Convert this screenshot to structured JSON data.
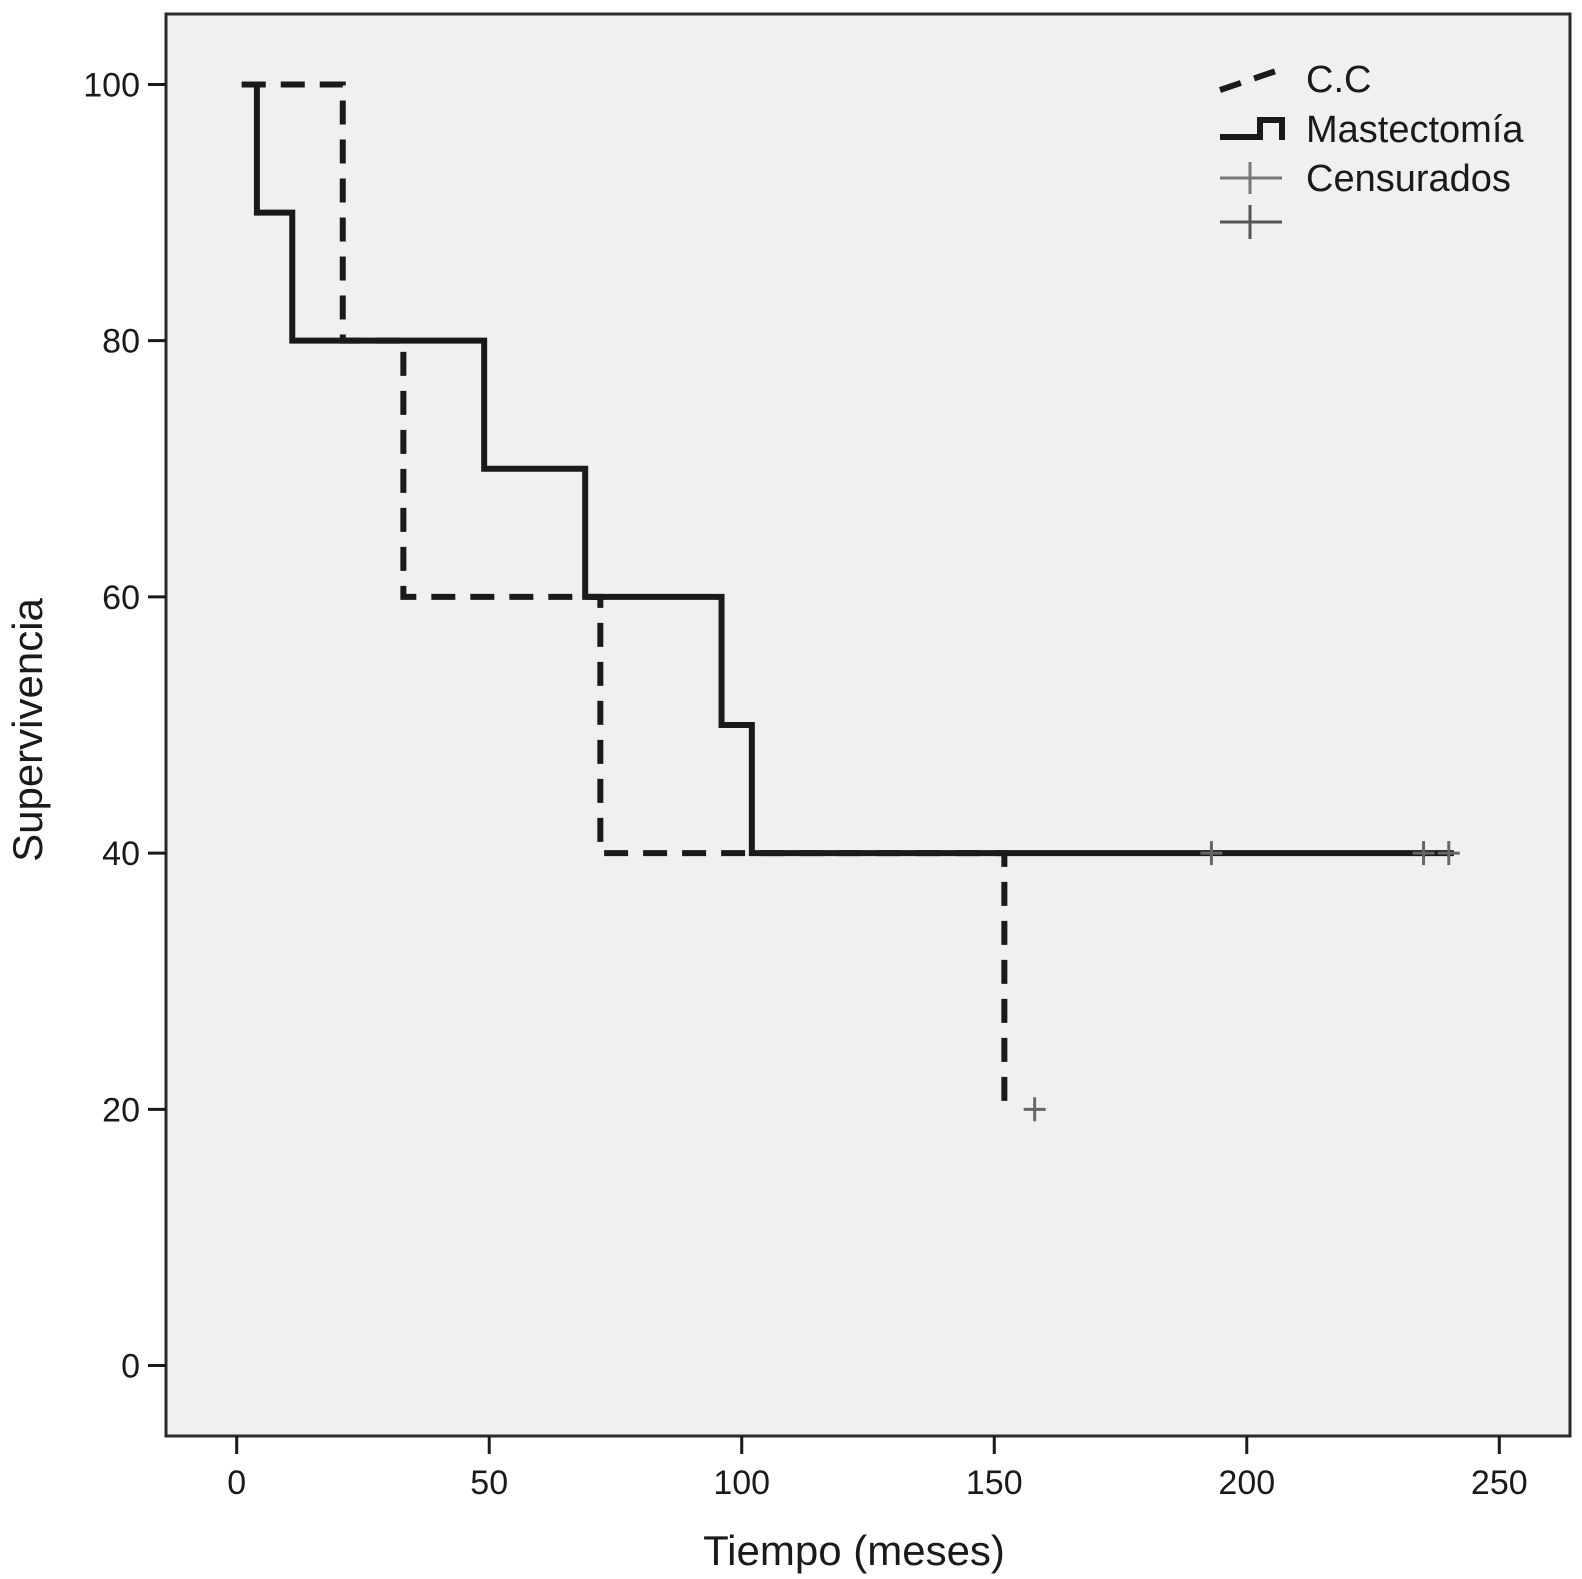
{
  "chart_data": {
    "type": "line",
    "subtype": "kaplan-meier step",
    "xlabel": "Tiempo (meses)",
    "ylabel": "Supervivencia",
    "xlim": [
      -14,
      264
    ],
    "ylim": [
      -5.5,
      105.5
    ],
    "xticks": [
      0,
      50,
      100,
      150,
      200,
      250
    ],
    "yticks": [
      0,
      20,
      40,
      60,
      80,
      100
    ],
    "grid": false,
    "legend_position": "top-right",
    "colors": {
      "plot_bg": "#eef0f2",
      "line": "#1a1a1a",
      "censor": "#666666"
    },
    "series": [
      {
        "name": "C.C",
        "style": "dashed",
        "steps": [
          [
            1,
            100
          ],
          [
            21,
            80
          ],
          [
            33,
            60
          ],
          [
            72,
            40
          ],
          [
            152,
            20
          ],
          [
            153,
            20
          ]
        ],
        "censored": [
          [
            158,
            20
          ]
        ]
      },
      {
        "name": "Mastectomía",
        "style": "solid",
        "steps": [
          [
            1,
            100
          ],
          [
            4,
            90
          ],
          [
            11,
            80
          ],
          [
            49,
            70
          ],
          [
            69,
            60
          ],
          [
            96,
            50
          ],
          [
            102,
            40
          ],
          [
            241,
            40
          ]
        ],
        "censored": [
          [
            193,
            40
          ],
          [
            235,
            40
          ],
          [
            240,
            40
          ]
        ]
      }
    ],
    "legend": [
      "C.C",
      "Mastectomía",
      "Censurados",
      ""
    ]
  }
}
